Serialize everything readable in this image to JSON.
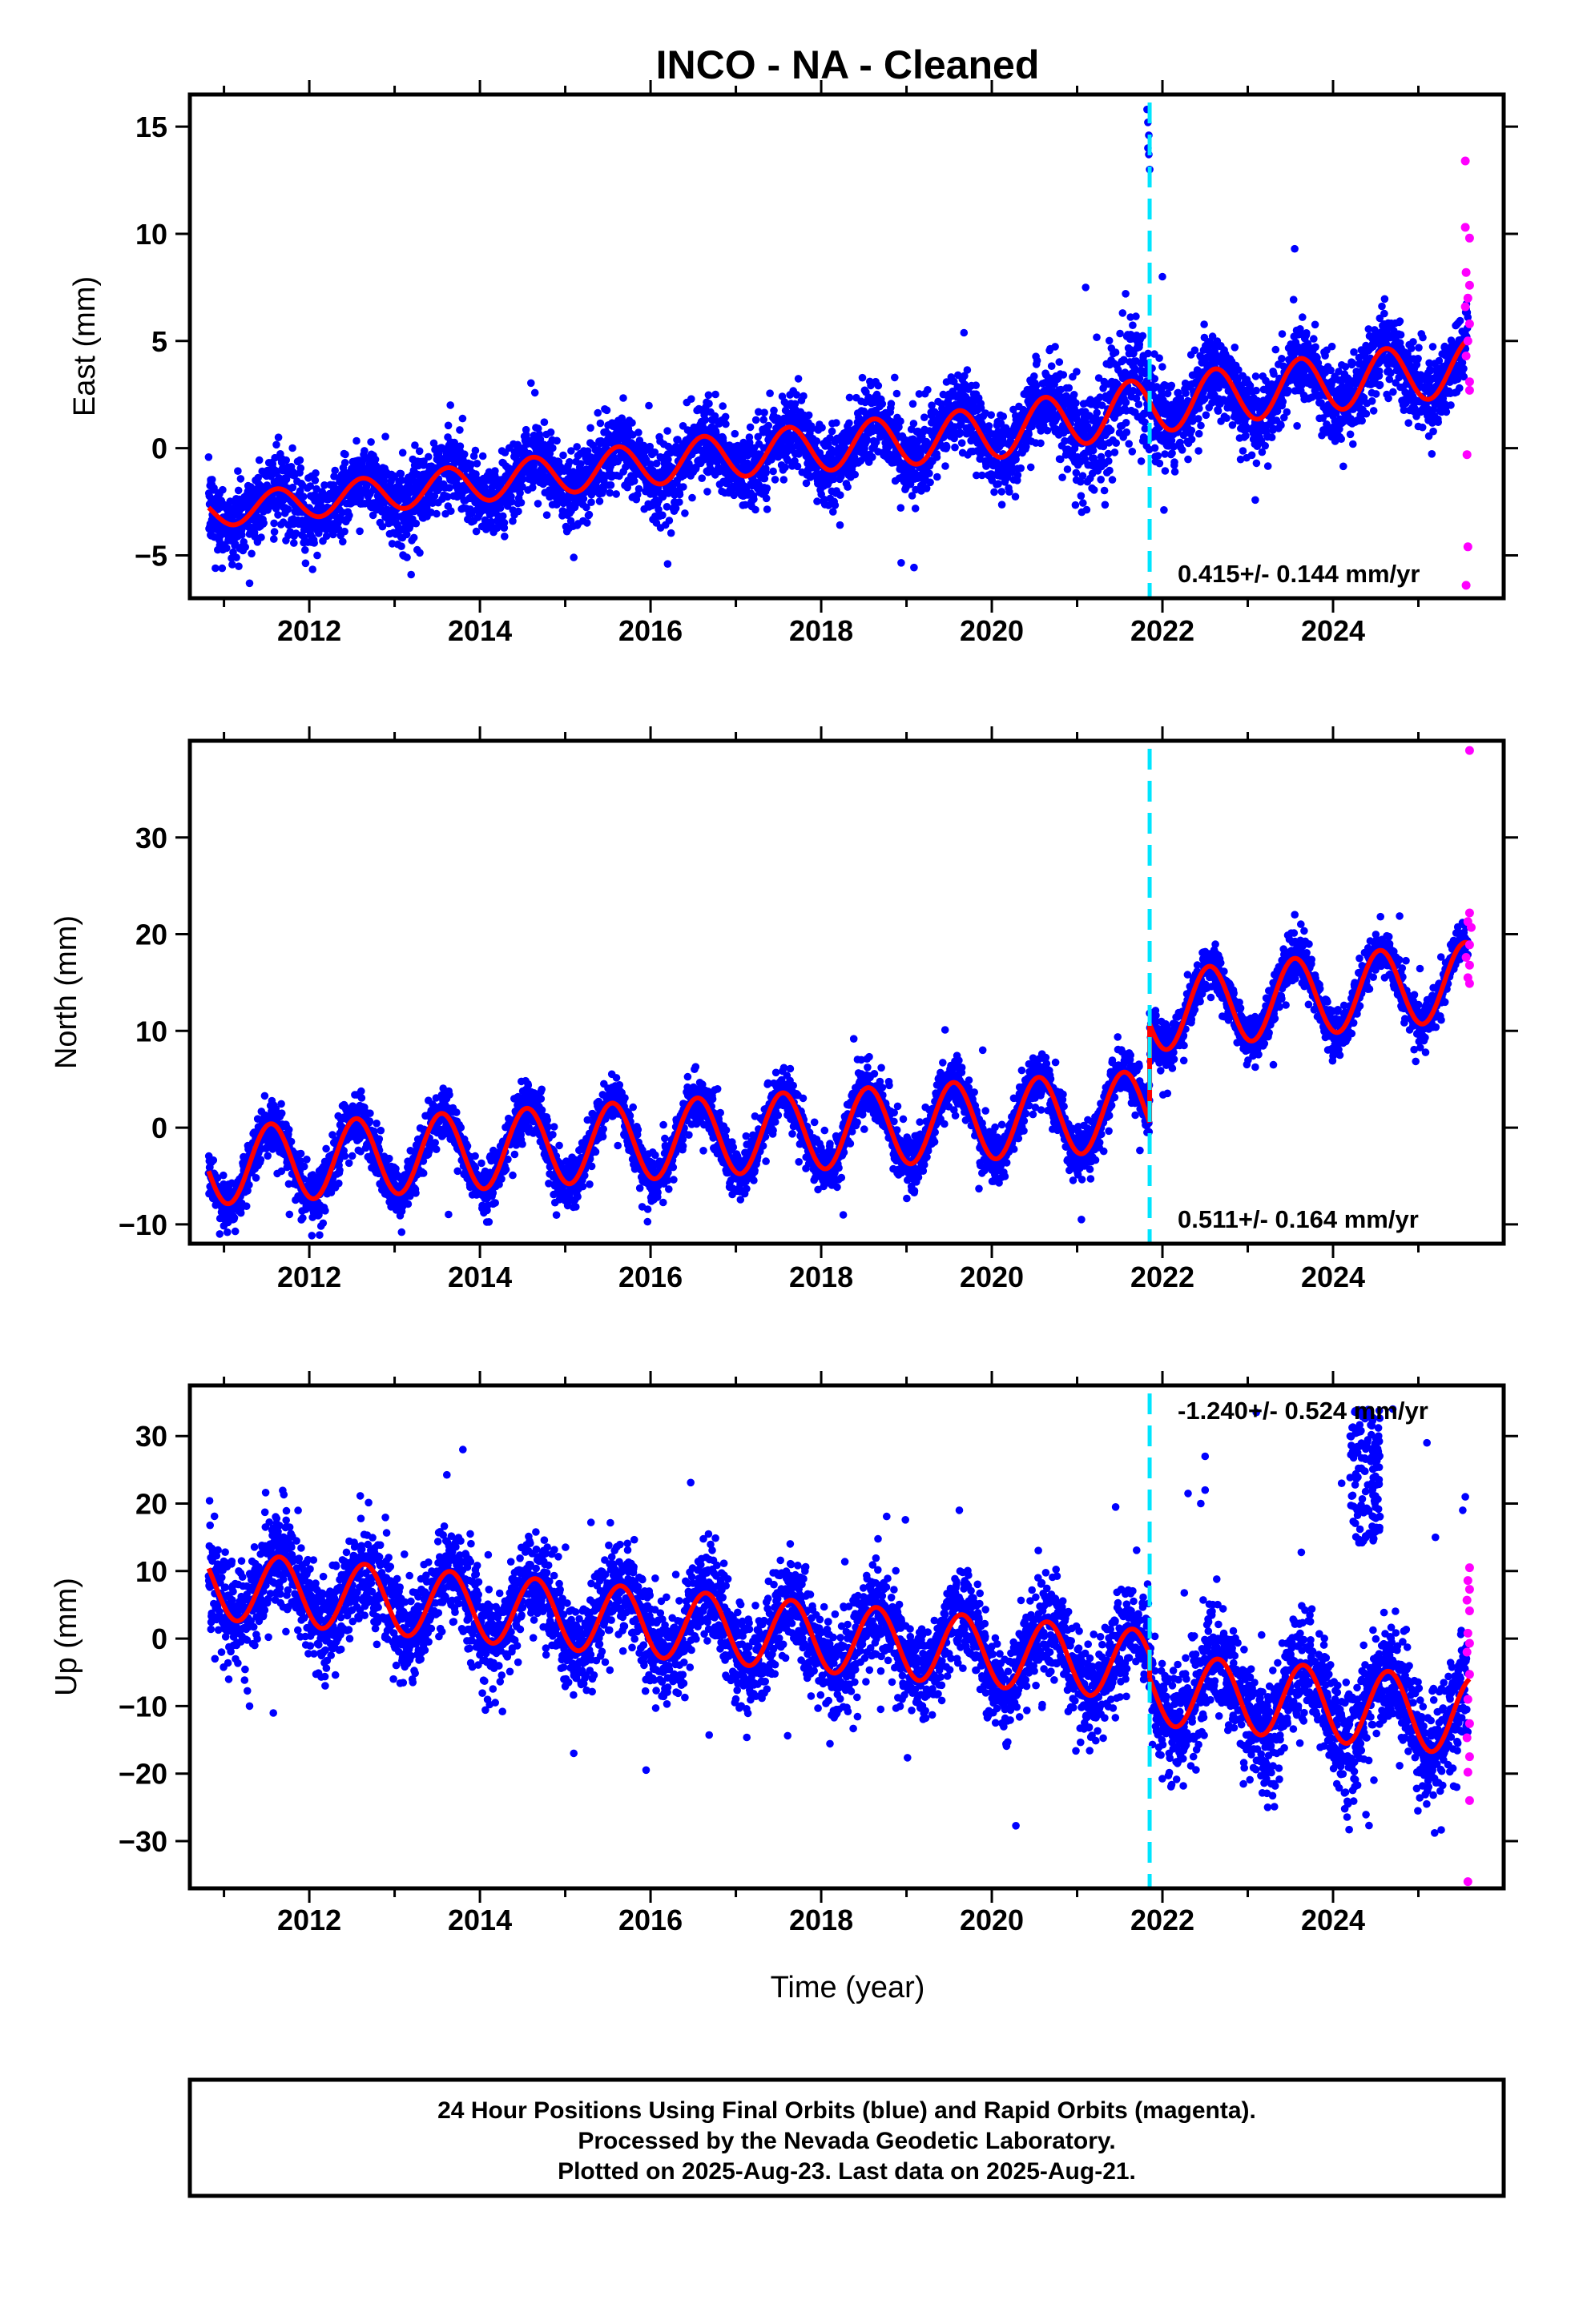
{
  "title": "INCO  - NA - Cleaned",
  "x_axis": {
    "label": "Time (year)",
    "ticks": [
      "2012",
      "2014",
      "2016",
      "2018",
      "2020",
      "2022",
      "2024"
    ]
  },
  "footer": {
    "line1": "24 Hour Positions Using Final Orbits (blue) and Rapid Orbits (magenta).",
    "line2": "Processed by the Nevada Geodetic Laboratory.",
    "line3": "Plotted on 2025-Aug-23. Last data on 2025-Aug-21."
  },
  "colors": {
    "final_orbits": "#0000ff",
    "rapid_orbits": "#ff00ff",
    "model": "#ff0000",
    "offset_line": "#00e5ff"
  },
  "chart_data": [
    {
      "type": "scatter",
      "component": "East",
      "ylabel": "East (mm)",
      "xlim": [
        2010.6,
        2026.0
      ],
      "ylim": [
        -7,
        16.5
      ],
      "yticks": [
        "15",
        "10",
        "5",
        "0",
        "−5"
      ],
      "ytick_values": [
        15,
        10,
        5,
        0,
        -5
      ],
      "rate_label": "0.415+/- 0.144 mm/yr",
      "offset_epoch": 2021.85,
      "model": {
        "trend": [
          [
            2010.8,
            -3.0
          ],
          [
            2014.0,
            -1.6
          ],
          [
            2017.0,
            -0.3
          ],
          [
            2020.0,
            0.7
          ],
          [
            2021.85,
            2.0
          ],
          [
            2023.0,
            2.6
          ],
          [
            2025.6,
            3.8
          ]
        ],
        "annual_amp": [
          [
            2010.8,
            0.7
          ],
          [
            2021.8,
            1.3
          ],
          [
            2025.6,
            1.3
          ]
        ],
        "peak_phase": 0.62
      },
      "scatter": {
        "noise": [
          [
            2010.8,
            0.85
          ],
          [
            2019.5,
            0.9
          ],
          [
            2020.5,
            0.9
          ],
          [
            2021.3,
            1.3
          ],
          [
            2021.8,
            1.5
          ],
          [
            2022.2,
            0.85
          ],
          [
            2025.6,
            0.9
          ]
        ],
        "outliers": [
          [
            2021.82,
            15.8
          ],
          [
            2021.83,
            15.2
          ],
          [
            2021.84,
            14.6
          ],
          [
            2021.83,
            14.0
          ],
          [
            2021.85,
            13.0
          ],
          [
            2021.84,
            13.7
          ],
          [
            2022.0,
            8.0
          ],
          [
            2021.1,
            7.5
          ],
          [
            2023.55,
            9.3
          ],
          [
            2011.3,
            -6.3
          ],
          [
            2010.9,
            -5.6
          ],
          [
            2015.1,
            -5.1
          ],
          [
            2016.2,
            -5.4
          ]
        ],
        "rapid": [
          [
            2025.55,
            13.4
          ],
          [
            2025.55,
            10.3
          ],
          [
            2025.6,
            9.8
          ],
          [
            2025.56,
            8.2
          ],
          [
            2025.6,
            7.6
          ],
          [
            2025.58,
            7.0
          ],
          [
            2025.55,
            6.6
          ],
          [
            2025.6,
            5.8
          ],
          [
            2025.58,
            5.0
          ],
          [
            2025.56,
            4.3
          ],
          [
            2025.6,
            3.1
          ],
          [
            2025.6,
            2.7
          ],
          [
            2025.57,
            -0.3
          ],
          [
            2025.58,
            -4.6
          ],
          [
            2025.56,
            -6.4
          ]
        ]
      }
    },
    {
      "type": "scatter",
      "component": "North",
      "ylabel": "North (mm)",
      "xlim": [
        2010.6,
        2026.0
      ],
      "ylim": [
        -12,
        40
      ],
      "yticks": [
        "30",
        "20",
        "10",
        "0",
        "−10"
      ],
      "ytick_values": [
        30,
        20,
        10,
        0,
        -10
      ],
      "rate_label": "0.511+/- 0.164 mm/yr",
      "offset_epoch": 2021.85,
      "model": {
        "trend_pre": [
          [
            2010.8,
            -4.0
          ],
          [
            2021.85,
            1.8
          ]
        ],
        "trend_post": [
          [
            2021.85,
            12.0
          ],
          [
            2025.6,
            15.2
          ]
        ],
        "annual_amp": [
          [
            2010.8,
            4.0
          ],
          [
            2021.85,
            4.1
          ],
          [
            2025.6,
            4.0
          ]
        ],
        "peak_phase": 0.55
      },
      "scatter": {
        "noise": [
          [
            2010.8,
            1.3
          ],
          [
            2021.85,
            1.3
          ],
          [
            2025.6,
            1.1
          ]
        ],
        "outliers": [
          [
            2023.3,
            6.5
          ],
          [
            2021.05,
            -9.5
          ],
          [
            2010.95,
            -11.0
          ]
        ],
        "rapid": [
          [
            2025.6,
            39.0
          ],
          [
            2025.6,
            22.2
          ],
          [
            2025.58,
            21.3
          ],
          [
            2025.62,
            20.7
          ],
          [
            2025.6,
            18.9
          ],
          [
            2025.56,
            17.6
          ],
          [
            2025.6,
            16.8
          ],
          [
            2025.58,
            15.5
          ],
          [
            2025.6,
            14.9
          ]
        ]
      }
    },
    {
      "type": "scatter",
      "component": "Up",
      "ylabel": "Up (mm)",
      "xlabel": "Time (year)",
      "xlim": [
        2010.6,
        2026.0
      ],
      "ylim": [
        -37,
        37.5
      ],
      "yticks": [
        "30",
        "20",
        "10",
        "0",
        "−10",
        "−20",
        "−30"
      ],
      "ytick_values": [
        30,
        20,
        10,
        0,
        -10,
        -20,
        -30
      ],
      "rate_label": "-1.240+/- 0.524 mm/yr",
      "offset_epoch": 2021.85,
      "model": {
        "trend_pre": [
          [
            2010.8,
            8.0
          ],
          [
            2021.85,
            -4.0
          ]
        ],
        "trend_post": [
          [
            2021.85,
            -7.5
          ],
          [
            2025.6,
            -11.5
          ]
        ],
        "annual_amp": [
          [
            2010.8,
            5.0
          ],
          [
            2021.85,
            5.2
          ],
          [
            2025.6,
            5.8
          ]
        ],
        "peak_phase": 0.65
      },
      "scatter": {
        "noise": [
          [
            2010.8,
            3.7
          ],
          [
            2021.85,
            3.5
          ],
          [
            2022.0,
            4.3
          ],
          [
            2025.6,
            4.3
          ]
        ],
        "cluster": {
          "x": [
            2024.2,
            2024.55
          ],
          "y": [
            14,
            34
          ]
        },
        "outliers": [
          [
            2022.5,
            27.0
          ],
          [
            2022.3,
            21.5
          ],
          [
            2022.45,
            20.0
          ],
          [
            2022.5,
            22.0
          ],
          [
            2023.1,
            33.5
          ],
          [
            2024.1,
            23.0
          ],
          [
            2024.7,
            34.0
          ],
          [
            2025.1,
            29.0
          ],
          [
            2025.2,
            15.0
          ],
          [
            2025.55,
            21.0
          ],
          [
            2025.52,
            19.0
          ],
          [
            2011.3,
            -10.0
          ],
          [
            2015.1,
            -17.0
          ],
          [
            2013.8,
            28.0
          ]
        ],
        "rapid": [
          [
            2025.6,
            10.5
          ],
          [
            2025.58,
            8.6
          ],
          [
            2025.6,
            7.3
          ],
          [
            2025.57,
            5.7
          ],
          [
            2025.6,
            4.1
          ],
          [
            2025.58,
            0.8
          ],
          [
            2025.6,
            -0.7
          ],
          [
            2025.57,
            -2.0
          ],
          [
            2025.6,
            -5.3
          ],
          [
            2025.58,
            -9.0
          ],
          [
            2025.6,
            -12.6
          ],
          [
            2025.57,
            -14.7
          ],
          [
            2025.6,
            -17.5
          ],
          [
            2025.58,
            -19.8
          ],
          [
            2025.6,
            -24.0
          ],
          [
            2025.58,
            -36.0
          ]
        ]
      }
    }
  ]
}
